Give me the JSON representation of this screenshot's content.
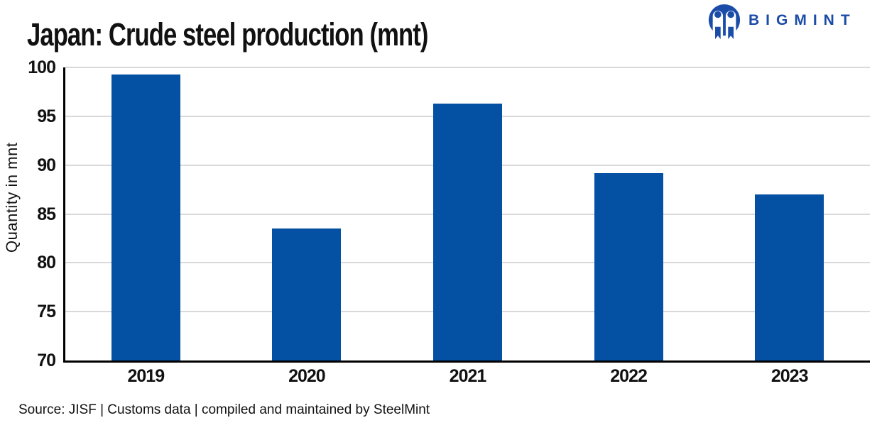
{
  "header": {
    "logo": {
      "text": "BIGMINT"
    }
  },
  "chart_data": {
    "type": "bar",
    "title": "Japan: Crude steel production (mnt)",
    "xlabel": "",
    "ylabel": "Quantity in mnt",
    "categories": [
      "2019",
      "2020",
      "2021",
      "2022",
      "2023"
    ],
    "values": [
      99.3,
      83.5,
      96.3,
      89.2,
      87.0
    ],
    "ylim": [
      70,
      100
    ],
    "yticks": [
      70,
      75,
      80,
      85,
      90,
      95,
      100
    ],
    "grid": true,
    "legend_position": "none",
    "bar_color": "#0450A2"
  },
  "footer": {
    "source": "Source: JISF | Customs data | compiled and maintained by SteelMint"
  },
  "colors": {
    "bar": "#0450A2",
    "logo_blue": "#1B4CA8",
    "gridline": "#D9D9D9",
    "axis": "#000000",
    "background": "#FFFFFF"
  }
}
